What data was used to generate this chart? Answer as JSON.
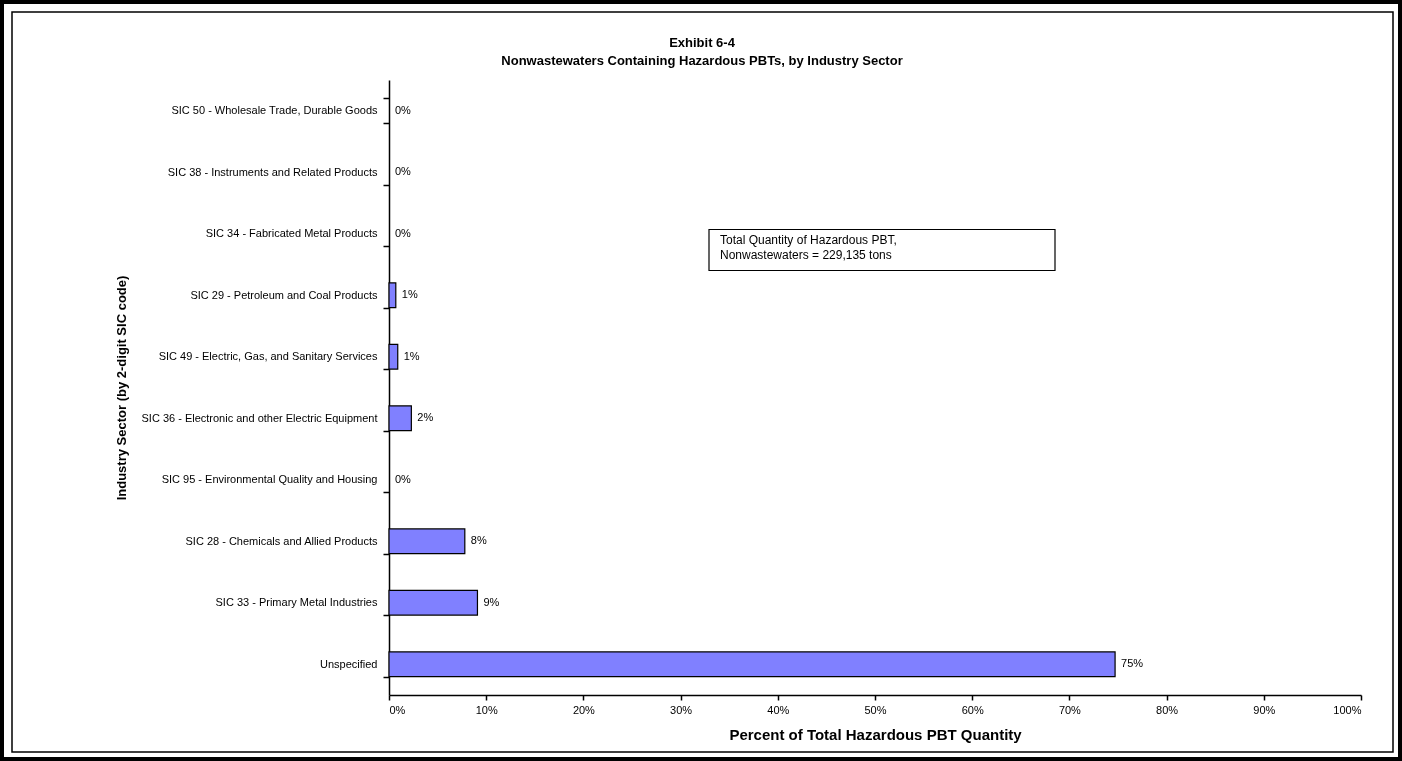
{
  "chart_data": {
    "type": "bar",
    "orientation": "horizontal",
    "title": "Exhibit 6-4",
    "subtitle": "Nonwastewaters Containing Hazardous PBTs, by Industry Sector",
    "xlabel": "Percent of Total Hazardous PBT Quantity",
    "ylabel": "Industry Sector (by 2-digit SIC code)",
    "categories": [
      "SIC 50 - Wholesale Trade, Durable Goods",
      "SIC 38 - Instruments and Related Products",
      "SIC 34 - Fabricated Metal Products",
      "SIC 29 - Petroleum and Coal Products",
      "SIC 49 - Electric, Gas, and Sanitary Services",
      "SIC 36 - Electronic and other Electric Equipment",
      "SIC 95 - Environmental Quality and Housing",
      "SIC 28 - Chemicals and Allied Products",
      "SIC 33 - Primary Metal Industries",
      "Unspecified"
    ],
    "values": [
      0,
      0,
      0,
      0.7,
      0.9,
      2.3,
      0,
      7.8,
      9.1,
      74.7
    ],
    "value_labels": [
      "0%",
      "0%",
      "0%",
      "1%",
      "1%",
      "2%",
      "0%",
      "8%",
      "9%",
      "75%"
    ],
    "color": "#8080ff",
    "xlim": [
      0,
      100
    ],
    "xticks": [
      {
        "value": 0,
        "label": "0%"
      },
      {
        "value": 10,
        "label": "10%"
      },
      {
        "value": 20,
        "label": "20%"
      },
      {
        "value": 30,
        "label": "30%"
      },
      {
        "value": 40,
        "label": "40%"
      },
      {
        "value": 50,
        "label": "50%"
      },
      {
        "value": 60,
        "label": "60%"
      },
      {
        "value": 70,
        "label": "70%"
      },
      {
        "value": 80,
        "label": "80%"
      },
      {
        "value": 90,
        "label": "90%"
      },
      {
        "value": 100,
        "label": "100%"
      }
    ],
    "annotations": [
      "Total Quantity of Hazardous PBT,\nNonwastewaters = 229,135 tons"
    ],
    "grid": false
  }
}
